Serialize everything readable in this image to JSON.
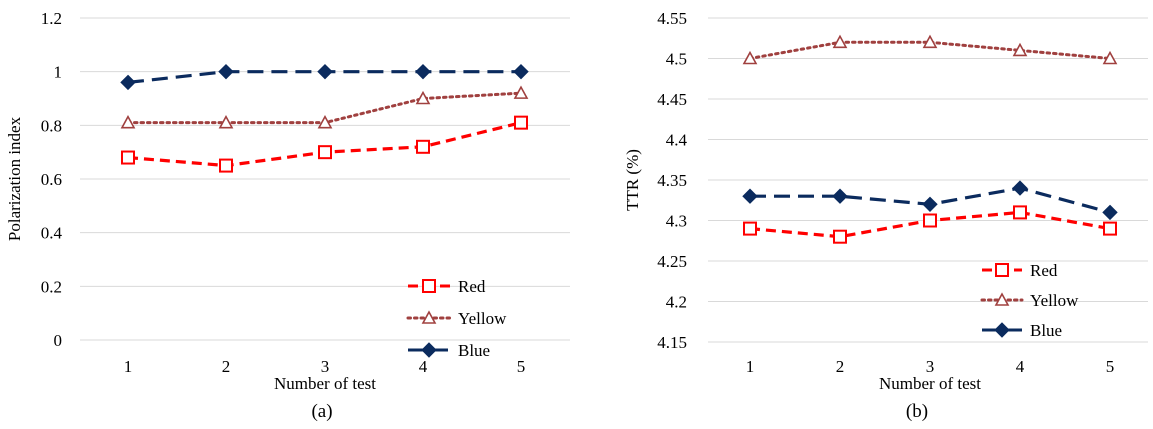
{
  "chart_data": [
    {
      "type": "line",
      "panel_label": "(a)",
      "xlabel": "Number of test",
      "ylabel": "Polarization index",
      "x": [
        1,
        2,
        3,
        4,
        5
      ],
      "ylim": [
        0,
        1.2
      ],
      "yticks": [
        0,
        0.2,
        0.4,
        0.6,
        0.8,
        1,
        1.2
      ],
      "ytick_labels": [
        "0",
        "0.2",
        "0.4",
        "0.6",
        "0.8",
        "1",
        "1.2"
      ],
      "grid": "horizontal",
      "legend": "bottom-right",
      "series": [
        {
          "name": "Red",
          "values": [
            0.68,
            0.65,
            0.7,
            0.72,
            0.81
          ],
          "color": "#ff0000",
          "dash": "dash",
          "marker": "square-open"
        },
        {
          "name": "Yellow",
          "values": [
            0.81,
            0.81,
            0.81,
            0.9,
            0.92
          ],
          "color": "#a0403f",
          "dash": "dot",
          "marker": "triangle-open"
        },
        {
          "name": "Blue",
          "values": [
            0.96,
            1.0,
            1.0,
            1.0,
            1.0
          ],
          "color": "#0b2b5e",
          "dash": "longdash",
          "marker": "diamond-filled"
        }
      ]
    },
    {
      "type": "line",
      "panel_label": "(b)",
      "xlabel": "Number of test",
      "ylabel": "TTR (%)",
      "x": [
        1,
        2,
        3,
        4,
        5
      ],
      "ylim": [
        4.15,
        4.55
      ],
      "yticks": [
        4.15,
        4.2,
        4.25,
        4.3,
        4.35,
        4.4,
        4.45,
        4.5,
        4.55
      ],
      "ytick_labels": [
        "4.15",
        "4.2",
        "4.25",
        "4.3",
        "4.35",
        "4.4",
        "4.45",
        "4.5",
        "4.55"
      ],
      "grid": "horizontal",
      "legend": "bottom-right",
      "series": [
        {
          "name": "Red",
          "values": [
            4.29,
            4.28,
            4.3,
            4.31,
            4.29
          ],
          "color": "#ff0000",
          "dash": "dash",
          "marker": "square-open"
        },
        {
          "name": "Yellow",
          "values": [
            4.5,
            4.52,
            4.52,
            4.51,
            4.5
          ],
          "color": "#a0403f",
          "dash": "dot",
          "marker": "triangle-open"
        },
        {
          "name": "Blue",
          "values": [
            4.33,
            4.33,
            4.32,
            4.34,
            4.31
          ],
          "color": "#0b2b5e",
          "dash": "longdash",
          "marker": "diamond-filled"
        }
      ]
    }
  ]
}
